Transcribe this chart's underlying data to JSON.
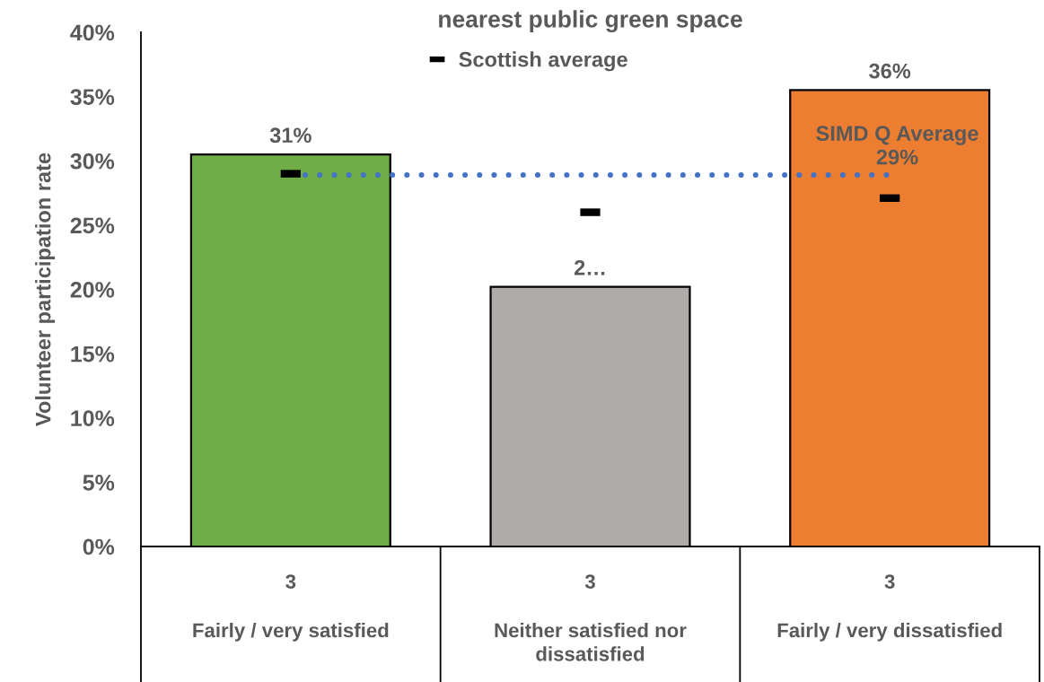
{
  "chart_data": {
    "type": "bar",
    "title": "nearest public green space",
    "ylabel": "Volunteer participation rate",
    "categories": [
      "3\nFairly / very satisfied",
      "3\nNeither satisfied nor dissatisfied",
      "3\nFairly / very dissatisfied"
    ],
    "series": [
      {
        "colors": [
          "#70ad47",
          "#afabab",
          "#ed7d31"
        ],
        "values": [
          30.5,
          20.2,
          35.5
        ],
        "value_labels": [
          "31%",
          "2…",
          "36%"
        ]
      },
      {
        "type": "scatter",
        "name": "Scottish average",
        "color": "#000000",
        "values": [
          29.0,
          26.0,
          27.1
        ]
      }
    ],
    "ref_lines": [
      {
        "axis": "y",
        "value": 28.9,
        "label": "SIMD Q Average\n29%",
        "color": "#4472c4",
        "line_style": "dotted"
      }
    ],
    "ylim": [
      0,
      40
    ],
    "yticks": [
      {
        "value": 0,
        "label": "0%"
      },
      {
        "value": 5,
        "label": "5%"
      },
      {
        "value": 10,
        "label": "10%"
      },
      {
        "value": 15,
        "label": "15%"
      },
      {
        "value": 20,
        "label": "20%"
      },
      {
        "value": 25,
        "label": "25%"
      },
      {
        "value": 30,
        "label": "30%"
      },
      {
        "value": 35,
        "label": "35%"
      },
      {
        "value": 40,
        "label": "40%"
      }
    ],
    "legend": "top"
  }
}
